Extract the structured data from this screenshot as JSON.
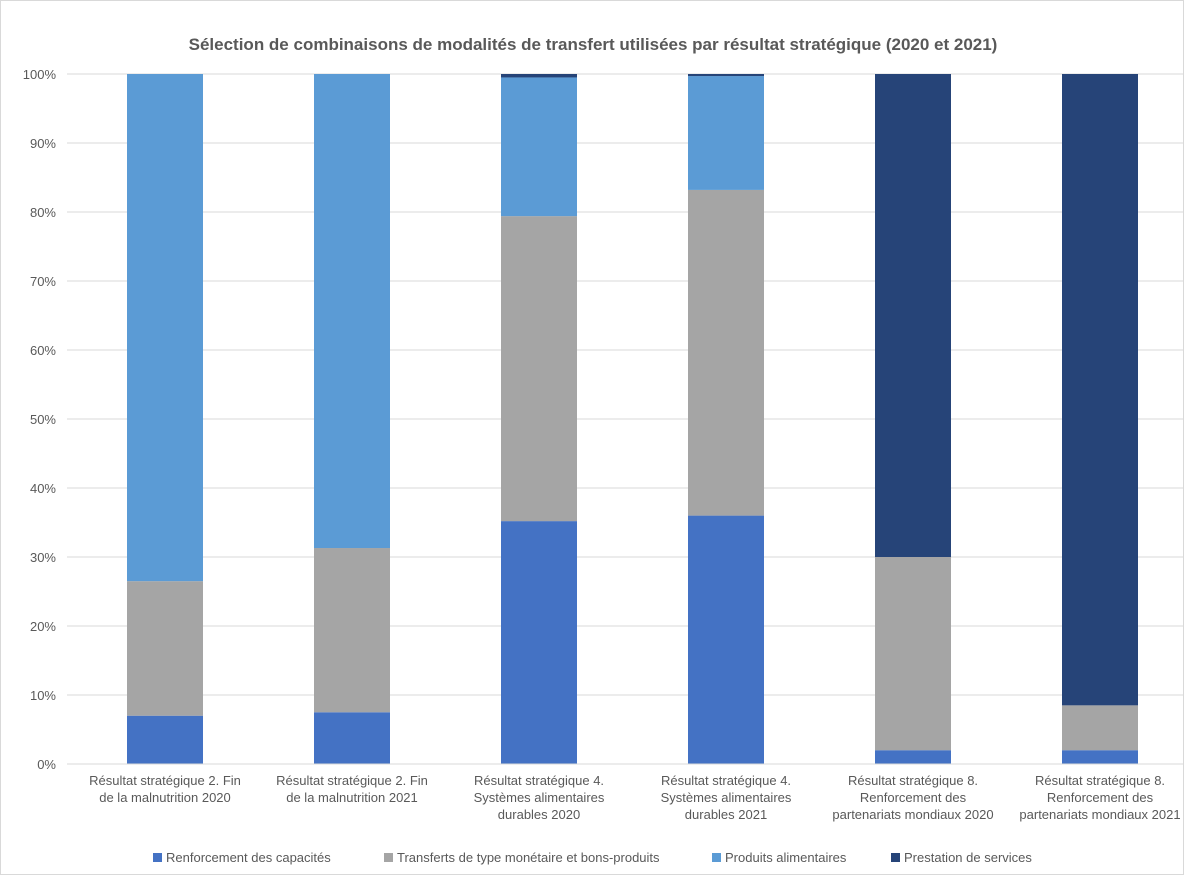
{
  "chart_data": {
    "type": "bar",
    "stacked": true,
    "title": "Sélection de combinaisons  de modalités de transfert utilisées par résultat stratégique (2020 et 2021)",
    "xlabel": "",
    "ylabel": "",
    "ylim": [
      0,
      100
    ],
    "yticks": [
      "0%",
      "10%",
      "20%",
      "30%",
      "40%",
      "50%",
      "60%",
      "70%",
      "80%",
      "90%",
      "100%"
    ],
    "grid": true,
    "legend_position": "bottom",
    "categories": [
      [
        "Résultat stratégique 2. Fin",
        "de la malnutrition 2020"
      ],
      [
        "Résultat stratégique 2. Fin",
        "de la malnutrition 2021"
      ],
      [
        "Résultat stratégique 4.",
        "Systèmes alimentaires",
        "durables 2020"
      ],
      [
        "Résultat stratégique 4.",
        "Systèmes alimentaires",
        "durables 2021"
      ],
      [
        "Résultat stratégique 8.",
        "Renforcement des",
        "partenariats mondiaux 2020"
      ],
      [
        "Résultat stratégique 8.",
        "Renforcement des",
        "partenariats mondiaux 2021"
      ]
    ],
    "series": [
      {
        "name": "Renforcement des capacités",
        "color": "#4472c4",
        "values": [
          7,
          7.5,
          35.2,
          36,
          2,
          2
        ]
      },
      {
        "name": "Transferts de type monétaire et bons-produits",
        "color": "#a5a5a5",
        "values": [
          19.5,
          23.8,
          44.2,
          47.2,
          28,
          6.5
        ]
      },
      {
        "name": "Produits alimentaires",
        "color": "#5b9bd5",
        "values": [
          73.5,
          68.7,
          20.1,
          16.5,
          0,
          0
        ]
      },
      {
        "name": "Prestation de services",
        "color": "#264478",
        "values": [
          0,
          0,
          0.5,
          0.3,
          70,
          91.5
        ]
      }
    ]
  }
}
